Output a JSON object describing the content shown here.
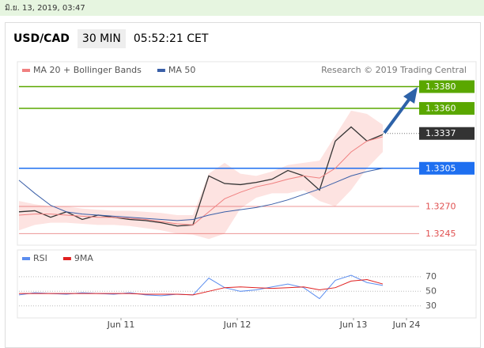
{
  "header": {
    "timestamp": "มิ.ย. 13, 2019, 03:47",
    "pair": "USD/CAD",
    "timeframe": "30 MIN",
    "clock": "05:52:21 CET"
  },
  "chart_data": [
    {
      "type": "line",
      "annotation": "Research © 2019 Trading Central",
      "x": [
        0,
        1,
        2,
        3,
        4,
        5,
        6,
        7,
        8,
        9,
        10,
        11,
        12,
        13,
        14,
        15,
        16,
        17,
        18,
        19,
        20,
        21,
        22,
        23
      ],
      "xlim": [
        0,
        25.5
      ],
      "ylim": [
        1.3238,
        1.34
      ],
      "series": [
        {
          "color": "#333333",
          "values": [
            1.3265,
            1.3266,
            1.326,
            1.3265,
            1.3258,
            1.3262,
            1.326,
            1.3258,
            1.3257,
            1.3255,
            1.3252,
            1.3253,
            1.3298,
            1.3291,
            1.329,
            1.3292,
            1.3295,
            1.3303,
            1.3298,
            1.3285,
            1.333,
            1.3343,
            1.333,
            1.3336
          ]
        },
        {
          "name": "MA 20 + Bollinger Bands",
          "color": "#f08080",
          "values": [
            1.3262,
            1.3263,
            1.3263,
            1.3262,
            1.3261,
            1.326,
            1.326,
            1.3259,
            1.3258,
            1.3256,
            1.3254,
            1.3253,
            1.3265,
            1.3277,
            1.3283,
            1.3288,
            1.3291,
            1.3295,
            1.3298,
            1.3296,
            1.3305,
            1.332,
            1.333,
            1.3334
          ]
        },
        {
          "name": "MA 50",
          "color": "#3a5fa8",
          "values": [
            1.3294,
            1.3282,
            1.3271,
            1.3265,
            1.3263,
            1.3262,
            1.3261,
            1.326,
            1.3259,
            1.3258,
            1.3257,
            1.3258,
            1.3262,
            1.3265,
            1.3267,
            1.3269,
            1.3272,
            1.3276,
            1.3281,
            1.3286,
            1.3292,
            1.3298,
            1.3302,
            1.3305
          ]
        }
      ],
      "band": {
        "color": "#fde3e1",
        "upper": [
          1.3275,
          1.3272,
          1.327,
          1.327,
          1.3268,
          1.3267,
          1.3266,
          1.3266,
          1.3265,
          1.3264,
          1.3262,
          1.3262,
          1.33,
          1.331,
          1.33,
          1.3298,
          1.3302,
          1.3308,
          1.331,
          1.3312,
          1.3335,
          1.3358,
          1.3355,
          1.3345
        ],
        "lower": [
          1.3248,
          1.3253,
          1.3255,
          1.3255,
          1.3254,
          1.3253,
          1.3253,
          1.3252,
          1.325,
          1.3248,
          1.3245,
          1.3244,
          1.324,
          1.3245,
          1.3268,
          1.3278,
          1.3282,
          1.3282,
          1.3285,
          1.3275,
          1.327,
          1.3285,
          1.3305,
          1.332
        ]
      },
      "levels": [
        {
          "value": 1.338,
          "label": "1.3380",
          "color": "#5aa700",
          "box": true
        },
        {
          "value": 1.336,
          "label": "1.3360",
          "color": "#5aa700",
          "box": true
        },
        {
          "value": 1.3337,
          "label": "1.3337",
          "color": "#333333",
          "box": true,
          "dotted": true
        },
        {
          "value": 1.3305,
          "label": "1.3305",
          "color": "#1e6ff0",
          "box": true
        },
        {
          "value": 1.327,
          "label": "1.3270",
          "color": "#e05050",
          "box": false
        },
        {
          "value": 1.3245,
          "label": "1.3245",
          "color": "#e05050",
          "box": false
        }
      ]
    },
    {
      "type": "line",
      "x": [
        0,
        1,
        2,
        3,
        4,
        5,
        6,
        7,
        8,
        9,
        10,
        11,
        12,
        13,
        14,
        15,
        16,
        17,
        18,
        19,
        20,
        21,
        22,
        23
      ],
      "xlim": [
        0,
        25.5
      ],
      "ylim": [
        20,
        85
      ],
      "yticks": [
        30,
        50,
        70
      ],
      "xticks": [
        {
          "value": 6.45,
          "label": "Jun 11"
        },
        {
          "value": 13.8,
          "label": "Jun 12"
        },
        {
          "value": 21.15,
          "label": "Jun 13"
        },
        {
          "value": 24.5,
          "label": "Jun 24"
        }
      ],
      "series": [
        {
          "name": "RSI",
          "color": "#5b8def",
          "values": [
            45,
            48,
            47,
            46,
            48,
            47,
            46,
            48,
            45,
            44,
            46,
            45,
            68,
            55,
            50,
            52,
            56,
            60,
            55,
            40,
            65,
            72,
            62,
            58
          ]
        },
        {
          "name": "9MA",
          "color": "#e02020",
          "values": [
            47,
            47,
            47,
            47,
            47,
            47,
            47,
            47,
            46,
            46,
            46,
            45,
            50,
            55,
            56,
            55,
            54,
            55,
            56,
            52,
            55,
            64,
            66,
            60
          ]
        }
      ]
    }
  ]
}
